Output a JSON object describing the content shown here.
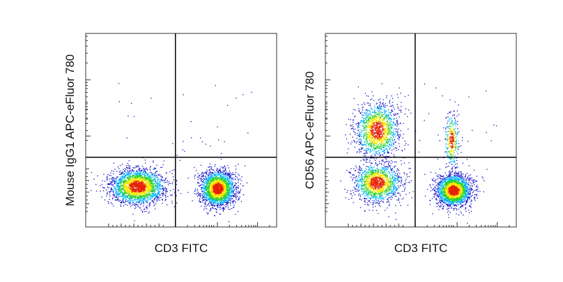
{
  "chart_data": [
    {
      "type": "scatter",
      "style": "density-dot-plot",
      "xlabel": "CD3 FITC",
      "ylabel": "Mouse IgG1 APC-eFluor 780",
      "x_scale": "biexponential",
      "y_scale": "biexponential",
      "x_gate_fraction": 0.47,
      "y_gate_fraction": 0.64,
      "populations": [
        {
          "center": [
            0.27,
            0.79
          ],
          "spread": [
            0.07,
            0.045
          ],
          "count": 2400
        },
        {
          "center": [
            0.69,
            0.8
          ],
          "spread": [
            0.045,
            0.045
          ],
          "count": 2400
        }
      ],
      "quadrant_percent": {
        "upper_left": null,
        "upper_right": null,
        "lower_left": null,
        "lower_right": null
      },
      "grid": false,
      "legend": "none"
    },
    {
      "type": "scatter",
      "style": "density-dot-plot",
      "xlabel": "CD3 FITC",
      "ylabel": "CD56 APC-eFluor 780",
      "x_scale": "biexponential",
      "y_scale": "biexponential",
      "x_gate_fraction": 0.47,
      "y_gate_fraction": 0.64,
      "populations": [
        {
          "center": [
            0.27,
            0.5
          ],
          "spread": [
            0.055,
            0.07
          ],
          "count": 1500
        },
        {
          "center": [
            0.27,
            0.77
          ],
          "spread": [
            0.06,
            0.05
          ],
          "count": 1500
        },
        {
          "center": [
            0.67,
            0.81
          ],
          "spread": [
            0.045,
            0.04
          ],
          "count": 2200
        },
        {
          "center": [
            0.66,
            0.55
          ],
          "spread": [
            0.018,
            0.07
          ],
          "count": 350
        }
      ],
      "quadrant_percent": {
        "upper_left": null,
        "upper_right": null,
        "lower_left": null,
        "lower_right": null
      },
      "grid": false,
      "legend": "none"
    }
  ],
  "colors": {
    "density_low": "#1010c8",
    "density_mid_low": "#00b4ff",
    "density_mid": "#28d228",
    "density_mid_high": "#ffe600",
    "density_high": "#e61e00",
    "frame": "#333333",
    "gate_line": "#000000"
  }
}
